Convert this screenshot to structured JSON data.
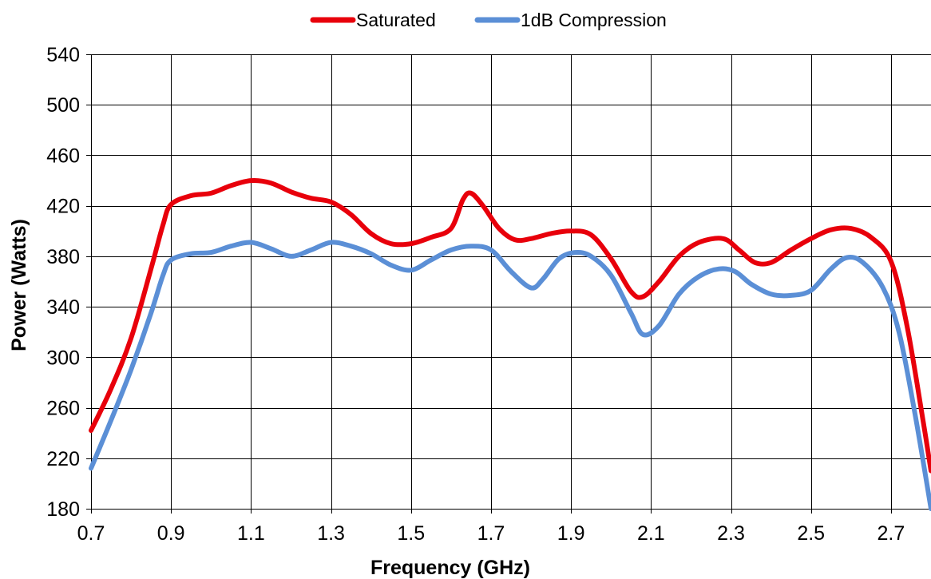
{
  "chart_data": {
    "type": "line",
    "title": "",
    "xlabel": "Frequency (GHz)",
    "ylabel": "Power (Watts)",
    "xlim": [
      0.7,
      2.8
    ],
    "ylim": [
      180,
      540
    ],
    "x_ticks": [
      "0.7",
      "0.9",
      "1.1",
      "1.3",
      "1.5",
      "1.7",
      "1.9",
      "2.1",
      "2.3",
      "2.5",
      "2.7"
    ],
    "x_tick_values": [
      0.7,
      0.9,
      1.1,
      1.3,
      1.5,
      1.7,
      1.9,
      2.1,
      2.3,
      2.5,
      2.7
    ],
    "y_ticks": [
      "180",
      "220",
      "260",
      "300",
      "340",
      "380",
      "420",
      "460",
      "500",
      "540"
    ],
    "y_tick_values": [
      180,
      220,
      260,
      300,
      340,
      380,
      420,
      460,
      500,
      540
    ],
    "grid": true,
    "legend_position": "top-center",
    "series": [
      {
        "name": "Saturated",
        "color": "#e8000b",
        "points": [
          [
            0.7,
            242
          ],
          [
            0.75,
            275
          ],
          [
            0.8,
            315
          ],
          [
            0.85,
            370
          ],
          [
            0.88,
            405
          ],
          [
            0.9,
            421
          ],
          [
            0.95,
            428
          ],
          [
            1.0,
            430
          ],
          [
            1.05,
            436
          ],
          [
            1.1,
            440
          ],
          [
            1.15,
            438
          ],
          [
            1.2,
            431
          ],
          [
            1.25,
            426
          ],
          [
            1.3,
            423
          ],
          [
            1.35,
            413
          ],
          [
            1.4,
            398
          ],
          [
            1.45,
            390
          ],
          [
            1.5,
            390
          ],
          [
            1.55,
            395
          ],
          [
            1.6,
            402
          ],
          [
            1.63,
            425
          ],
          [
            1.65,
            430
          ],
          [
            1.68,
            420
          ],
          [
            1.72,
            402
          ],
          [
            1.76,
            393
          ],
          [
            1.8,
            394
          ],
          [
            1.85,
            398
          ],
          [
            1.9,
            400
          ],
          [
            1.95,
            397
          ],
          [
            2.0,
            378
          ],
          [
            2.05,
            352
          ],
          [
            2.08,
            348
          ],
          [
            2.12,
            360
          ],
          [
            2.17,
            380
          ],
          [
            2.22,
            391
          ],
          [
            2.28,
            394
          ],
          [
            2.32,
            385
          ],
          [
            2.36,
            375
          ],
          [
            2.4,
            375
          ],
          [
            2.45,
            385
          ],
          [
            2.5,
            394
          ],
          [
            2.55,
            401
          ],
          [
            2.6,
            402
          ],
          [
            2.65,
            395
          ],
          [
            2.7,
            376
          ],
          [
            2.74,
            325
          ],
          [
            2.78,
            250
          ],
          [
            2.8,
            210
          ]
        ]
      },
      {
        "name": "1dB Compression",
        "color": "#5b8fd6",
        "points": [
          [
            0.7,
            212
          ],
          [
            0.75,
            250
          ],
          [
            0.8,
            290
          ],
          [
            0.85,
            335
          ],
          [
            0.88,
            365
          ],
          [
            0.9,
            377
          ],
          [
            0.95,
            382
          ],
          [
            1.0,
            383
          ],
          [
            1.05,
            388
          ],
          [
            1.1,
            391
          ],
          [
            1.15,
            386
          ],
          [
            1.2,
            380
          ],
          [
            1.25,
            385
          ],
          [
            1.3,
            391
          ],
          [
            1.35,
            388
          ],
          [
            1.4,
            382
          ],
          [
            1.45,
            373
          ],
          [
            1.5,
            369
          ],
          [
            1.55,
            377
          ],
          [
            1.6,
            385
          ],
          [
            1.65,
            388
          ],
          [
            1.7,
            385
          ],
          [
            1.75,
            368
          ],
          [
            1.8,
            355
          ],
          [
            1.83,
            362
          ],
          [
            1.87,
            378
          ],
          [
            1.91,
            383
          ],
          [
            1.95,
            380
          ],
          [
            2.0,
            365
          ],
          [
            2.05,
            335
          ],
          [
            2.08,
            318
          ],
          [
            2.12,
            325
          ],
          [
            2.17,
            350
          ],
          [
            2.22,
            364
          ],
          [
            2.27,
            370
          ],
          [
            2.31,
            368
          ],
          [
            2.35,
            358
          ],
          [
            2.4,
            350
          ],
          [
            2.45,
            349
          ],
          [
            2.5,
            353
          ],
          [
            2.55,
            370
          ],
          [
            2.59,
            379
          ],
          [
            2.63,
            375
          ],
          [
            2.68,
            355
          ],
          [
            2.72,
            320
          ],
          [
            2.76,
            255
          ],
          [
            2.8,
            180
          ]
        ]
      }
    ]
  }
}
